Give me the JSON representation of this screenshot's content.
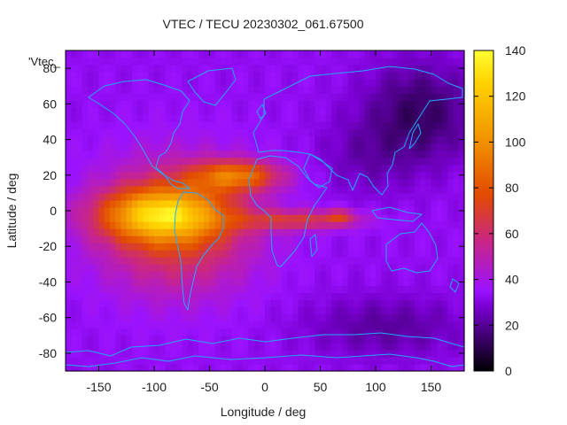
{
  "chart_data": {
    "type": "heatmap",
    "title": "VTEC / TECU 20230302_061.67500",
    "legend_label": "'Vtec_",
    "xlabel": "Longitude / deg",
    "ylabel": "Latitude / deg",
    "xlim": [
      -180,
      180
    ],
    "ylim": [
      -90,
      90
    ],
    "x_ticks": [
      -150,
      -100,
      -50,
      0,
      50,
      100,
      150
    ],
    "y_ticks": [
      -80,
      -60,
      -40,
      -20,
      0,
      20,
      40,
      60,
      80
    ],
    "colorbar": {
      "range": [
        0,
        140
      ],
      "ticks": [
        0,
        20,
        40,
        60,
        80,
        100,
        120,
        140
      ],
      "colors": [
        "#000000",
        "#3a0068",
        "#7a00d2",
        "#9a12ff",
        "#c8258a",
        "#e24a00",
        "#f08a00",
        "#ffd200",
        "#ffff33"
      ],
      "positions": [
        0,
        0.1,
        0.2,
        0.25,
        0.4,
        0.55,
        0.7,
        0.9,
        1.0
      ]
    },
    "background_level": 33,
    "features": [
      {
        "name": "equatorial-crest-south",
        "lon": -95,
        "lat": -2,
        "sigma_lon": 38,
        "sigma_lat": 10,
        "amplitude": 65
      },
      {
        "name": "main-anomaly-envelope",
        "lon": -80,
        "lat": -8,
        "sigma_lon": 48,
        "sigma_lat": 25,
        "amplitude": 42
      },
      {
        "name": "northern-crest-atlantic",
        "lon": -25,
        "lat": 20,
        "sigma_lon": 28,
        "sigma_lat": 6,
        "amplitude": 50
      },
      {
        "name": "tongue-africa",
        "lon": 30,
        "lat": -5,
        "sigma_lon": 38,
        "sigma_lat": 4,
        "amplitude": 32
      },
      {
        "name": "tongue-tip-indian-ocean",
        "lon": 68,
        "lat": -3,
        "sigma_lon": 10,
        "sigma_lat": 3,
        "amplitude": 22
      },
      {
        "name": "north-pacific-low",
        "lon": 140,
        "lat": 55,
        "sigma_lon": 35,
        "sigma_lat": 20,
        "amplitude": -20
      },
      {
        "name": "south-indian-ocean-low",
        "lon": 110,
        "lat": -65,
        "sigma_lon": 50,
        "sigma_lat": 12,
        "amplitude": -12
      },
      {
        "name": "asia-low",
        "lon": 90,
        "lat": 30,
        "sigma_lon": 30,
        "sigma_lat": 15,
        "amplitude": -8
      }
    ],
    "max_value": 140,
    "min_value": 8,
    "grid": false,
    "overlay": "coastlines"
  }
}
